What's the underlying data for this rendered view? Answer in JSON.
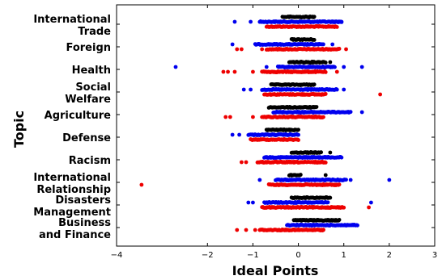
{
  "chart_data": {
    "type": "scatter",
    "xlabel": "Ideal Points",
    "ylabel": "Topic",
    "xlim": [
      -4,
      3
    ],
    "x_ticks": [
      "−4",
      "−2",
      "−1",
      "0",
      "1",
      "2",
      "3"
    ],
    "x_tick_values": [
      -4,
      -2,
      -1,
      0,
      1,
      2,
      3
    ],
    "grid": false,
    "legend": "none",
    "colors": {
      "black": "#000000",
      "blue": "#0000ee",
      "red": "#ee0000"
    },
    "categories": [
      {
        "label_lines": [
          "International",
          "Trade"
        ],
        "black": {
          "range": [
            -0.35,
            0.35
          ],
          "outliers": []
        },
        "blue": {
          "range": [
            -0.85,
            0.95
          ],
          "outliers": [
            -1.4,
            -1.05,
            0.95
          ]
        },
        "red": {
          "range": [
            -0.7,
            0.85
          ],
          "outliers": []
        }
      },
      {
        "label_lines": [
          "Foreign"
        ],
        "black": {
          "range": [
            -0.15,
            0.35
          ],
          "outliers": []
        },
        "blue": {
          "range": [
            -0.95,
            0.55
          ],
          "outliers": [
            -1.45,
            0.75
          ]
        },
        "red": {
          "range": [
            -0.7,
            0.9
          ],
          "outliers": [
            -1.35,
            -1.25,
            -0.8,
            0.65,
            1.05
          ]
        }
      },
      {
        "label_lines": [
          "Health"
        ],
        "black": {
          "range": [
            -0.2,
            0.6
          ],
          "outliers": [
            0.7
          ]
        },
        "blue": {
          "range": [
            -0.45,
            0.8
          ],
          "outliers": [
            -2.7,
            -0.7,
            1.0,
            1.4
          ]
        },
        "red": {
          "range": [
            -0.8,
            0.6
          ],
          "outliers": [
            -1.65,
            -1.55,
            -1.4,
            -1.0,
            0.85
          ]
        }
      },
      {
        "label_lines": [
          "Social",
          "Welfare"
        ],
        "black": {
          "range": [
            -0.6,
            0.35
          ],
          "outliers": []
        },
        "blue": {
          "range": [
            -0.8,
            0.85
          ],
          "outliers": [
            -1.2,
            -1.05,
            1.0
          ]
        },
        "red": {
          "range": [
            -0.75,
            0.6
          ],
          "outliers": [
            1.8
          ]
        }
      },
      {
        "label_lines": [
          "Agriculture"
        ],
        "black": {
          "range": [
            -0.65,
            0.4
          ],
          "outliers": []
        },
        "blue": {
          "range": [
            -0.55,
            1.15
          ],
          "outliers": [
            1.4
          ]
        },
        "red": {
          "range": [
            -0.8,
            0.55
          ],
          "outliers": [
            -1.6,
            -1.5,
            -1.0
          ]
        }
      },
      {
        "label_lines": [
          "Defense"
        ],
        "black": {
          "range": [
            -0.7,
            0.0
          ],
          "outliers": []
        },
        "blue": {
          "range": [
            -1.1,
            0.0
          ],
          "outliers": [
            -1.45,
            -1.3
          ]
        },
        "red": {
          "range": [
            -1.05,
            0.0
          ],
          "outliers": []
        }
      },
      {
        "label_lines": [
          "Racism"
        ],
        "black": {
          "range": [
            -0.15,
            0.5
          ],
          "outliers": [
            0.7
          ]
        },
        "blue": {
          "range": [
            -0.75,
            0.95
          ],
          "outliers": []
        },
        "red": {
          "range": [
            -0.9,
            0.6
          ],
          "outliers": [
            -1.25,
            -1.15
          ]
        }
      },
      {
        "label_lines": [
          "International",
          "Relationship"
        ],
        "black": {
          "range": [
            -0.2,
            0.05
          ],
          "outliers": [
            0.6
          ]
        },
        "blue": {
          "range": [
            -0.5,
            1.05
          ],
          "outliers": [
            -0.85,
            1.15,
            2.0
          ]
        },
        "red": {
          "range": [
            -0.65,
            0.9
          ],
          "outliers": [
            -3.45
          ]
        }
      },
      {
        "label_lines": [
          "Disasters",
          "Management"
        ],
        "black": {
          "range": [
            -0.15,
            0.7
          ],
          "outliers": []
        },
        "blue": {
          "range": [
            -0.75,
            0.65
          ],
          "outliers": [
            -1.1,
            -1.0,
            1.6
          ]
        },
        "red": {
          "range": [
            -0.8,
            1.0
          ],
          "outliers": [
            1.55
          ]
        }
      },
      {
        "label_lines": [
          "Business",
          "and Finance"
        ],
        "black": {
          "range": [
            -0.1,
            0.9
          ],
          "outliers": []
        },
        "blue": {
          "range": [
            -0.25,
            1.3
          ],
          "outliers": []
        },
        "red": {
          "range": [
            -0.85,
            0.55
          ],
          "outliers": [
            -1.35,
            -1.15,
            -0.95,
            -0.75,
            0.55
          ]
        }
      }
    ]
  }
}
